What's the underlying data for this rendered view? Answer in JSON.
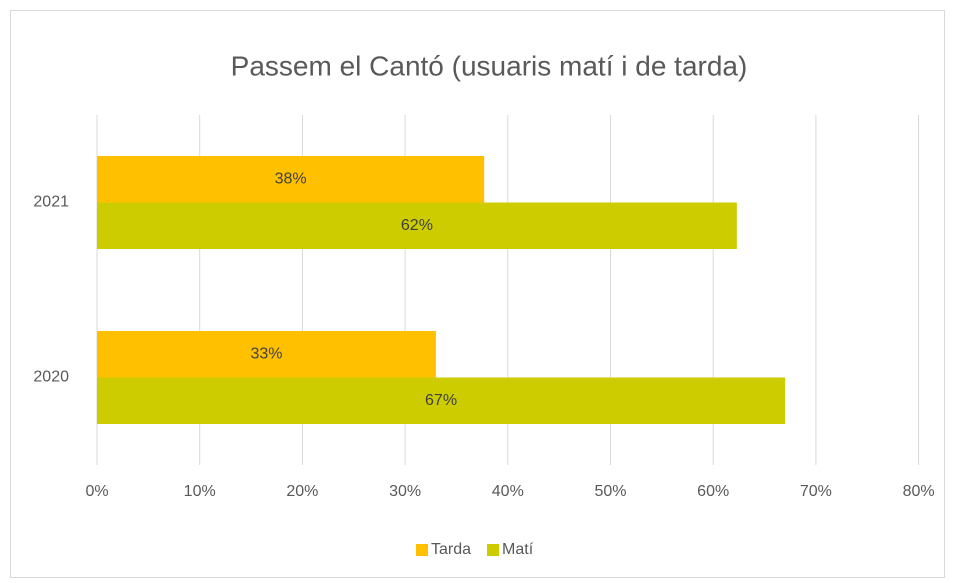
{
  "chart_data": {
    "type": "barh",
    "title": "Passem el Cantó (usuaris matí i de tarda)",
    "categories": [
      "2020",
      "2021"
    ],
    "series": [
      {
        "name": "Tarda",
        "color": "#ffc000",
        "values": [
          33,
          37.7
        ],
        "value_labels": [
          "33%",
          "38%"
        ]
      },
      {
        "name": "Matí",
        "color": "#cccc00",
        "values": [
          67,
          62.3
        ],
        "value_labels": [
          "67%",
          "62%"
        ]
      }
    ],
    "xlim": [
      0,
      80
    ],
    "xticks": [
      {
        "value": 0,
        "label": "0%"
      },
      {
        "value": 10,
        "label": "10%"
      },
      {
        "value": 20,
        "label": "20%"
      },
      {
        "value": 30,
        "label": "30%"
      },
      {
        "value": 40,
        "label": "40%"
      },
      {
        "value": 50,
        "label": "50%"
      },
      {
        "value": 60,
        "label": "60%"
      },
      {
        "value": 70,
        "label": "70%"
      },
      {
        "value": 80,
        "label": "80%"
      }
    ],
    "grid": true,
    "legend": "bottom"
  }
}
